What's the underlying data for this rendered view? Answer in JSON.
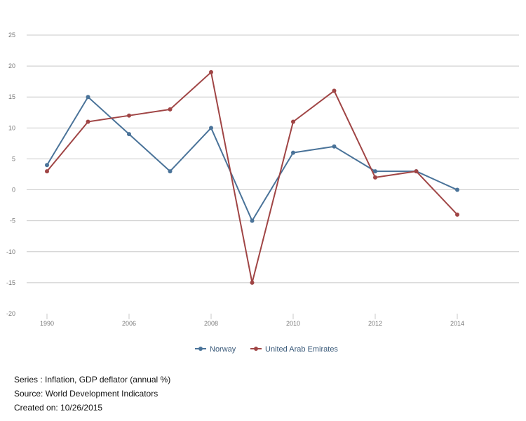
{
  "chart_data": {
    "type": "line",
    "title": "",
    "xlabel": "",
    "ylabel": "",
    "categories": [
      "1990",
      "2005",
      "2006",
      "2007",
      "2008",
      "2009",
      "2010",
      "2011",
      "2012",
      "2013",
      "2014"
    ],
    "x_tick_labels": [
      "1990",
      "",
      "2006",
      "",
      "2008",
      "",
      "2010",
      "",
      "2012",
      "",
      "2014"
    ],
    "y_ticks": [
      25,
      20,
      15,
      10,
      5,
      0,
      -5,
      -10,
      -15,
      -20
    ],
    "ylim": [
      -20,
      25
    ],
    "grid": true,
    "legend_position": "bottom-center",
    "series": [
      {
        "name": "Norway",
        "color": "#4a7399",
        "values": [
          4,
          15,
          9,
          3,
          10,
          -5,
          6,
          7,
          3,
          3,
          0
        ]
      },
      {
        "name": "United Arab Emirates",
        "color": "#a04545",
        "values": [
          3,
          11,
          12,
          13,
          19,
          -15,
          11,
          16,
          2,
          3,
          -4
        ]
      }
    ]
  },
  "notes": {
    "series": "Series : Inflation, GDP deflator (annual %)",
    "source": "Source: World Development Indicators",
    "created": "Created on: 10/26/2015"
  }
}
